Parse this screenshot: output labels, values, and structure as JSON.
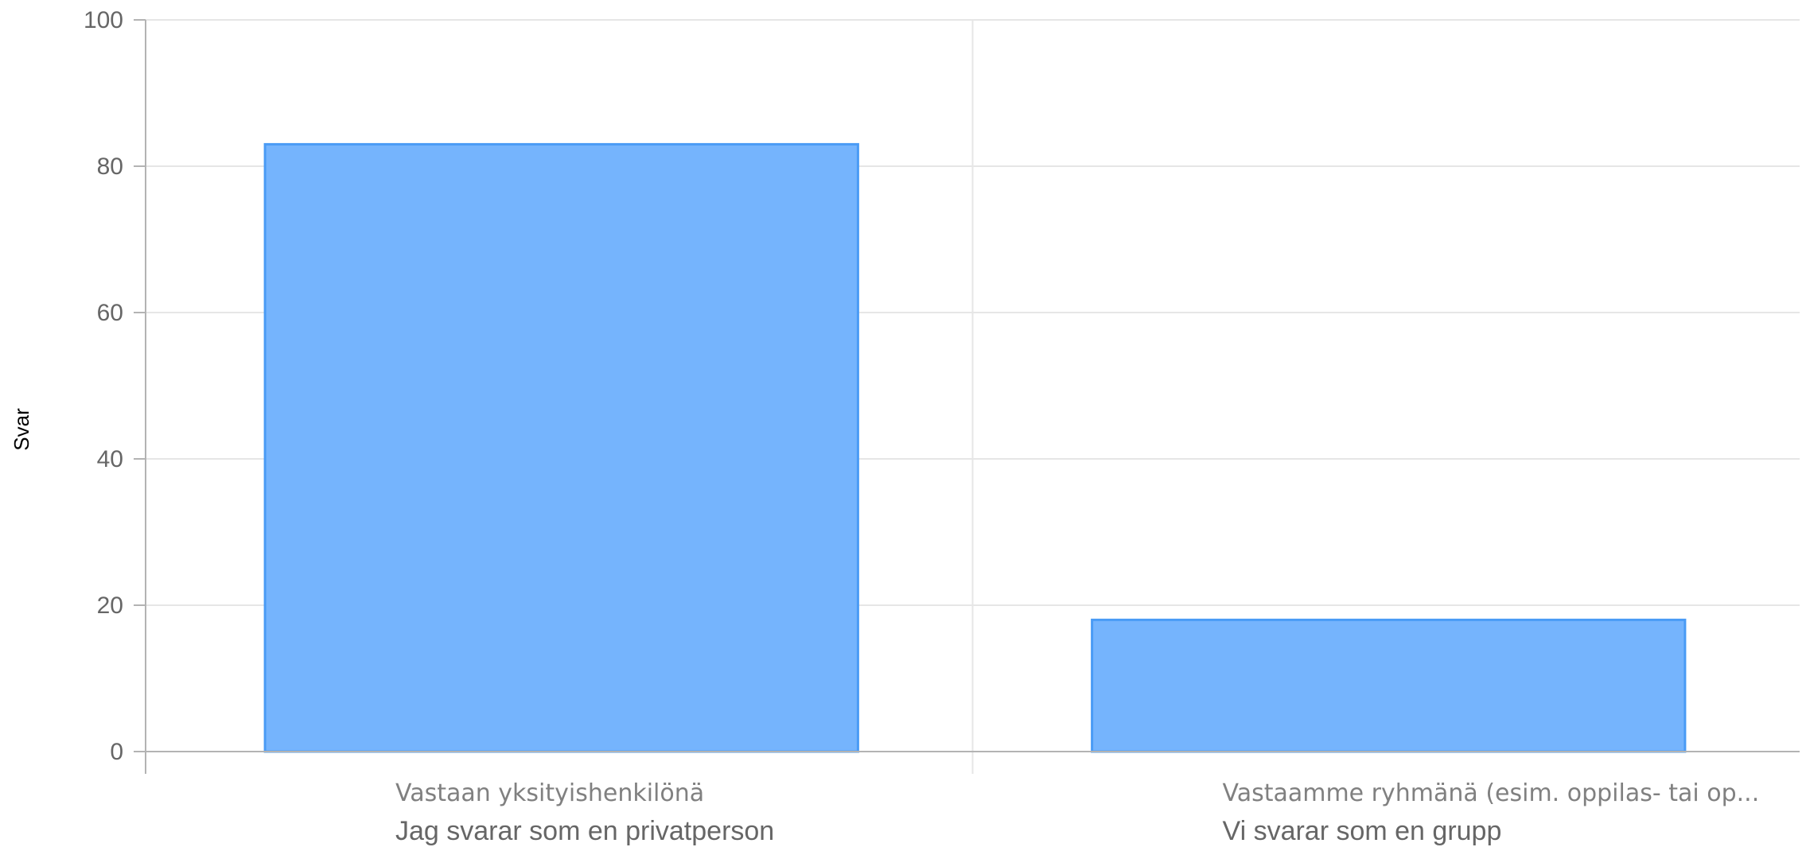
{
  "chart_data": {
    "type": "bar",
    "categories": [
      "Vastaan yksityishenkilönä",
      "Vastaamme ryhmänä (esim. oppilas- tai op..."
    ],
    "category_sublabels": [
      "Jag svarar som en privatperson",
      "Vi svarar som en grupp"
    ],
    "values": [
      83,
      18
    ],
    "ylabel": "Svar",
    "xlabel": "",
    "ylim": [
      0,
      100
    ],
    "yticks": [
      0,
      20,
      40,
      60,
      80,
      100
    ],
    "grid": true,
    "colors": {
      "bar_fill": "#75b4fd",
      "bar_stroke": "#4a9bf5",
      "grid": "#e6e6e6",
      "axis": "#b3b3b3"
    }
  }
}
